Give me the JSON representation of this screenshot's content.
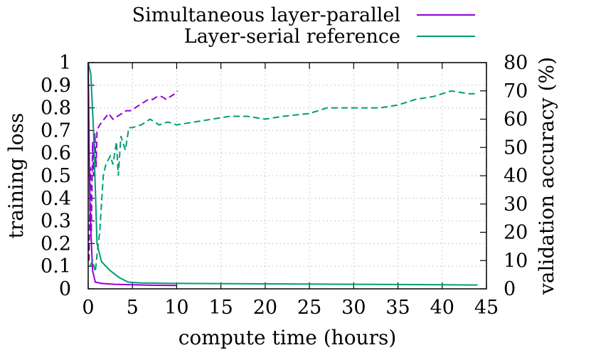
{
  "chart_data": {
    "type": "line",
    "xlabel": "compute time (hours)",
    "ylabel": "training loss",
    "y2label": "validation accuracy (%)",
    "xlim": [
      0,
      45
    ],
    "ylim": [
      0,
      1
    ],
    "y2lim": [
      0,
      80
    ],
    "xticks": [
      "0",
      "5",
      "10",
      "15",
      "20",
      "25",
      "30",
      "35",
      "40",
      "45"
    ],
    "yticks": [
      "0",
      "0.1",
      "0.2",
      "0.3",
      "0.4",
      "0.5",
      "0.6",
      "0.7",
      "0.8",
      "0.9",
      "1"
    ],
    "y2ticks": [
      "0",
      "10",
      "20",
      "30",
      "40",
      "50",
      "60",
      "70",
      "80"
    ],
    "grid": true,
    "legend_position": "top-right, above plot",
    "series": [
      {
        "name": "Simultaneous layer-parallel",
        "color": "#9400d3",
        "loss": [
          [
            0,
            1.0
          ],
          [
            0.2,
            0.35
          ],
          [
            0.5,
            0.08
          ],
          [
            0.8,
            0.03
          ],
          [
            1.5,
            0.024
          ],
          [
            3,
            0.02
          ],
          [
            5,
            0.018
          ],
          [
            7,
            0.016
          ],
          [
            10,
            0.015
          ]
        ],
        "accuracy": [
          [
            0.1,
            10
          ],
          [
            0.25,
            43
          ],
          [
            0.35,
            20
          ],
          [
            0.5,
            52
          ],
          [
            0.6,
            40
          ],
          [
            0.75,
            55
          ],
          [
            0.9,
            43
          ],
          [
            1.0,
            56
          ],
          [
            1.3,
            58
          ],
          [
            1.8,
            60
          ],
          [
            2.3,
            62
          ],
          [
            2.8,
            60
          ],
          [
            3.3,
            61
          ],
          [
            3.8,
            62
          ],
          [
            4.3,
            63
          ],
          [
            4.8,
            63
          ],
          [
            5.3,
            64
          ],
          [
            5.8,
            65
          ],
          [
            6.3,
            66
          ],
          [
            6.8,
            67
          ],
          [
            7.3,
            67
          ],
          [
            7.8,
            68
          ],
          [
            8.3,
            68
          ],
          [
            8.8,
            67
          ],
          [
            9.3,
            68
          ],
          [
            9.8,
            69
          ],
          [
            10.1,
            70
          ]
        ]
      },
      {
        "name": "Layer-serial reference",
        "color": "#009e73",
        "loss": [
          [
            0,
            1.0
          ],
          [
            0.3,
            0.95
          ],
          [
            0.6,
            0.7
          ],
          [
            1,
            0.2
          ],
          [
            1.5,
            0.12
          ],
          [
            2.5,
            0.08
          ],
          [
            3.5,
            0.05
          ],
          [
            4.5,
            0.03
          ],
          [
            6,
            0.026
          ],
          [
            10,
            0.024
          ],
          [
            20,
            0.022
          ],
          [
            30,
            0.02
          ],
          [
            40,
            0.018
          ],
          [
            44,
            0.017
          ]
        ],
        "accuracy": [
          [
            0.2,
            8
          ],
          [
            0.5,
            10
          ],
          [
            0.8,
            6
          ],
          [
            1.0,
            12
          ],
          [
            1.3,
            20
          ],
          [
            1.7,
            40
          ],
          [
            2.0,
            44
          ],
          [
            2.5,
            47
          ],
          [
            2.8,
            44
          ],
          [
            3.2,
            52
          ],
          [
            3.4,
            40
          ],
          [
            3.7,
            54
          ],
          [
            4.2,
            49
          ],
          [
            4.6,
            57
          ],
          [
            5.0,
            57
          ],
          [
            6,
            58
          ],
          [
            7,
            60
          ],
          [
            8,
            58
          ],
          [
            9,
            59
          ],
          [
            10,
            58
          ],
          [
            12,
            59
          ],
          [
            14,
            60
          ],
          [
            16,
            61
          ],
          [
            18,
            61
          ],
          [
            20,
            60
          ],
          [
            22,
            61
          ],
          [
            25,
            62
          ],
          [
            27,
            64
          ],
          [
            30,
            64
          ],
          [
            33,
            64
          ],
          [
            35,
            65
          ],
          [
            37,
            67
          ],
          [
            39,
            68
          ],
          [
            41,
            70
          ],
          [
            43,
            69
          ],
          [
            44,
            69
          ]
        ]
      }
    ]
  }
}
